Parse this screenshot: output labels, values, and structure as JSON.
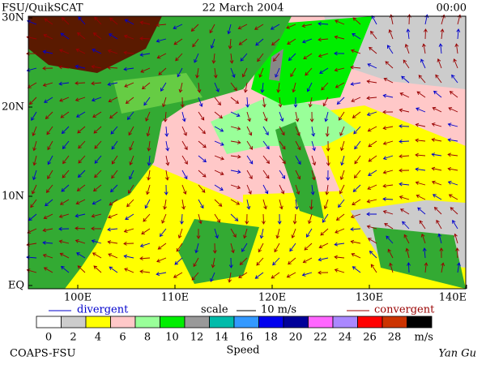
{
  "header": {
    "left": "FSU/QuikSCAT",
    "center": "22 March 2004",
    "right": "00:00"
  },
  "map": {
    "lat_labels": [
      "30N",
      "20N",
      "10N",
      "EQ"
    ],
    "lon_labels": [
      "100E",
      "110E",
      "120E",
      "130E",
      "140E"
    ]
  },
  "legend": {
    "divergent": "divergent",
    "scale": "scale",
    "scale_value": "10 m/s",
    "convergent": "convergent",
    "colorbar": {
      "ticks": [
        "0",
        "2",
        "4",
        "6",
        "8",
        "10",
        "12",
        "14",
        "16",
        "18",
        "20",
        "22",
        "24",
        "26",
        "28"
      ],
      "unit": "m/s",
      "label": "Speed",
      "colors": [
        "#ffffff",
        "#cccccc",
        "#ffff00",
        "#ffc8c8",
        "#99ff99",
        "#00ee00",
        "#999999",
        "#00bbaa",
        "#3399ff",
        "#0000ee",
        "#000099",
        "#ff66ff",
        "#aa88ff",
        "#ff0000",
        "#cc3300",
        "#000000"
      ]
    }
  },
  "footer": {
    "left": "COAPS-FSU",
    "right": "Yan Gu"
  }
}
